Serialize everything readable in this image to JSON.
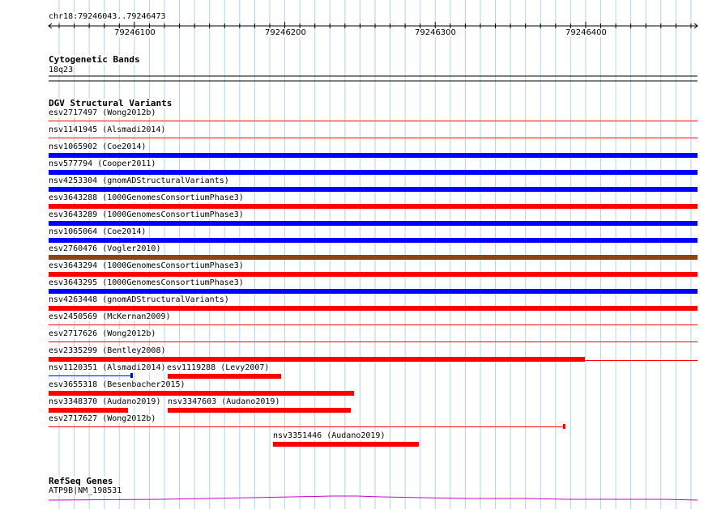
{
  "ruler": {
    "location": "chr18:79246043..79246473",
    "ticks": [
      "79246100",
      "79246200",
      "79246300",
      "79246400"
    ]
  },
  "cytoband": {
    "title": "Cytogenetic Bands",
    "band": "18q23"
  },
  "dgv": {
    "title": "DGV Structural Variants",
    "variants": [
      {
        "id": "esv2717497",
        "study": "Wong2012b",
        "label": "esv2717497 (Wong2012b)",
        "color": "#ff0000",
        "style": "thin"
      },
      {
        "id": "nsv1141945",
        "study": "Alsmadi2014",
        "label": "nsv1141945 (Alsmadi2014)",
        "color": "#ff0000",
        "style": "thin"
      },
      {
        "id": "nsv1065902",
        "study": "Coe2014",
        "label": "nsv1065902 (Coe2014)",
        "color": "#0000ff",
        "style": "thick"
      },
      {
        "id": "nsv577794",
        "study": "Cooper2011",
        "label": "nsv577794 (Cooper2011)",
        "color": "#0000ff",
        "style": "thick"
      },
      {
        "id": "nsv4253304",
        "study": "gnomADStructuralVariants",
        "label": "nsv4253304 (gnomADStructuralVariants)",
        "color": "#0000ff",
        "style": "thick"
      },
      {
        "id": "esv3643288",
        "study": "1000GenomesConsortiumPhase3",
        "label": "esv3643288 (1000GenomesConsortiumPhase3)",
        "color": "#ff0000",
        "style": "thick"
      },
      {
        "id": "esv3643289",
        "study": "1000GenomesConsortiumPhase3",
        "label": "esv3643289 (1000GenomesConsortiumPhase3)",
        "color": "#0000ff",
        "style": "thick"
      },
      {
        "id": "nsv1065064",
        "study": "Coe2014",
        "label": "nsv1065064 (Coe2014)",
        "color": "#0000ff",
        "style": "thick"
      },
      {
        "id": "esv2760476",
        "study": "Vogler2010",
        "label": "esv2760476 (Vogler2010)",
        "color": "#8b4513",
        "style": "thick"
      },
      {
        "id": "esv3643294",
        "study": "1000GenomesConsortiumPhase3",
        "label": "esv3643294 (1000GenomesConsortiumPhase3)",
        "color": "#ff0000",
        "style": "thick"
      },
      {
        "id": "esv3643295",
        "study": "1000GenomesConsortiumPhase3",
        "label": "esv3643295 (1000GenomesConsortiumPhase3)",
        "color": "#0000ff",
        "style": "thick"
      },
      {
        "id": "nsv4263448",
        "study": "gnomADStructuralVariants",
        "label": "nsv4263448 (gnomADStructuralVariants)",
        "color": "#ff0000",
        "style": "thick"
      },
      {
        "id": "esv2450569",
        "study": "McKernan2009",
        "label": "esv2450569 (McKernan2009)",
        "color": "#ff0000",
        "style": "thin"
      },
      {
        "id": "esv2717626",
        "study": "Wong2012b",
        "label": "esv2717626 (Wong2012b)",
        "color": "#ff0000",
        "style": "thin"
      },
      {
        "id": "esv2335299",
        "study": "Bentley2008",
        "label": "esv2335299 (Bentley2008)",
        "color": "#ff0000",
        "style": "mixed"
      },
      {
        "id": "nsv1120351",
        "study": "Alsmadi2014",
        "label": "nsv1120351 (Alsmadi2014)",
        "color": "#0000ff",
        "style": "short-thin"
      },
      {
        "id": "esv1119288",
        "study": "Levy2007",
        "label": "esv1119288 (Levy2007)",
        "color": "#ff0000",
        "style": "short-thick"
      },
      {
        "id": "esv3655318",
        "study": "Besenbacher2015",
        "label": "esv3655318 (Besenbacher2015)",
        "color": "#ff0000",
        "style": "short-thick"
      },
      {
        "id": "nsv3348370",
        "study": "Audano2019",
        "label": "nsv3348370 (Audano2019)",
        "color": "#ff0000",
        "style": "short-thick"
      },
      {
        "id": "nsv3347603",
        "study": "Audano2019",
        "label": "nsv3347603 (Audano2019)",
        "color": "#ff0000",
        "style": "short-thick"
      },
      {
        "id": "esv2717627",
        "study": "Wong2012b",
        "label": "esv2717627 (Wong2012b)",
        "color": "#ff0000",
        "style": "short-thin"
      },
      {
        "id": "nsv3351446",
        "study": "Audano2019",
        "label": "nsv3351446 (Audano2019)",
        "color": "#ff0000",
        "style": "short-thick"
      }
    ]
  },
  "refseq": {
    "title": "RefSeq Genes",
    "gene": "ATP9B|NM_198531",
    "color": "#cc00cc"
  },
  "colors": {
    "grid": "#b0d4e8",
    "red": "#ff0000",
    "blue": "#0000ff",
    "brown": "#8b4513",
    "magenta": "#cc00cc"
  }
}
